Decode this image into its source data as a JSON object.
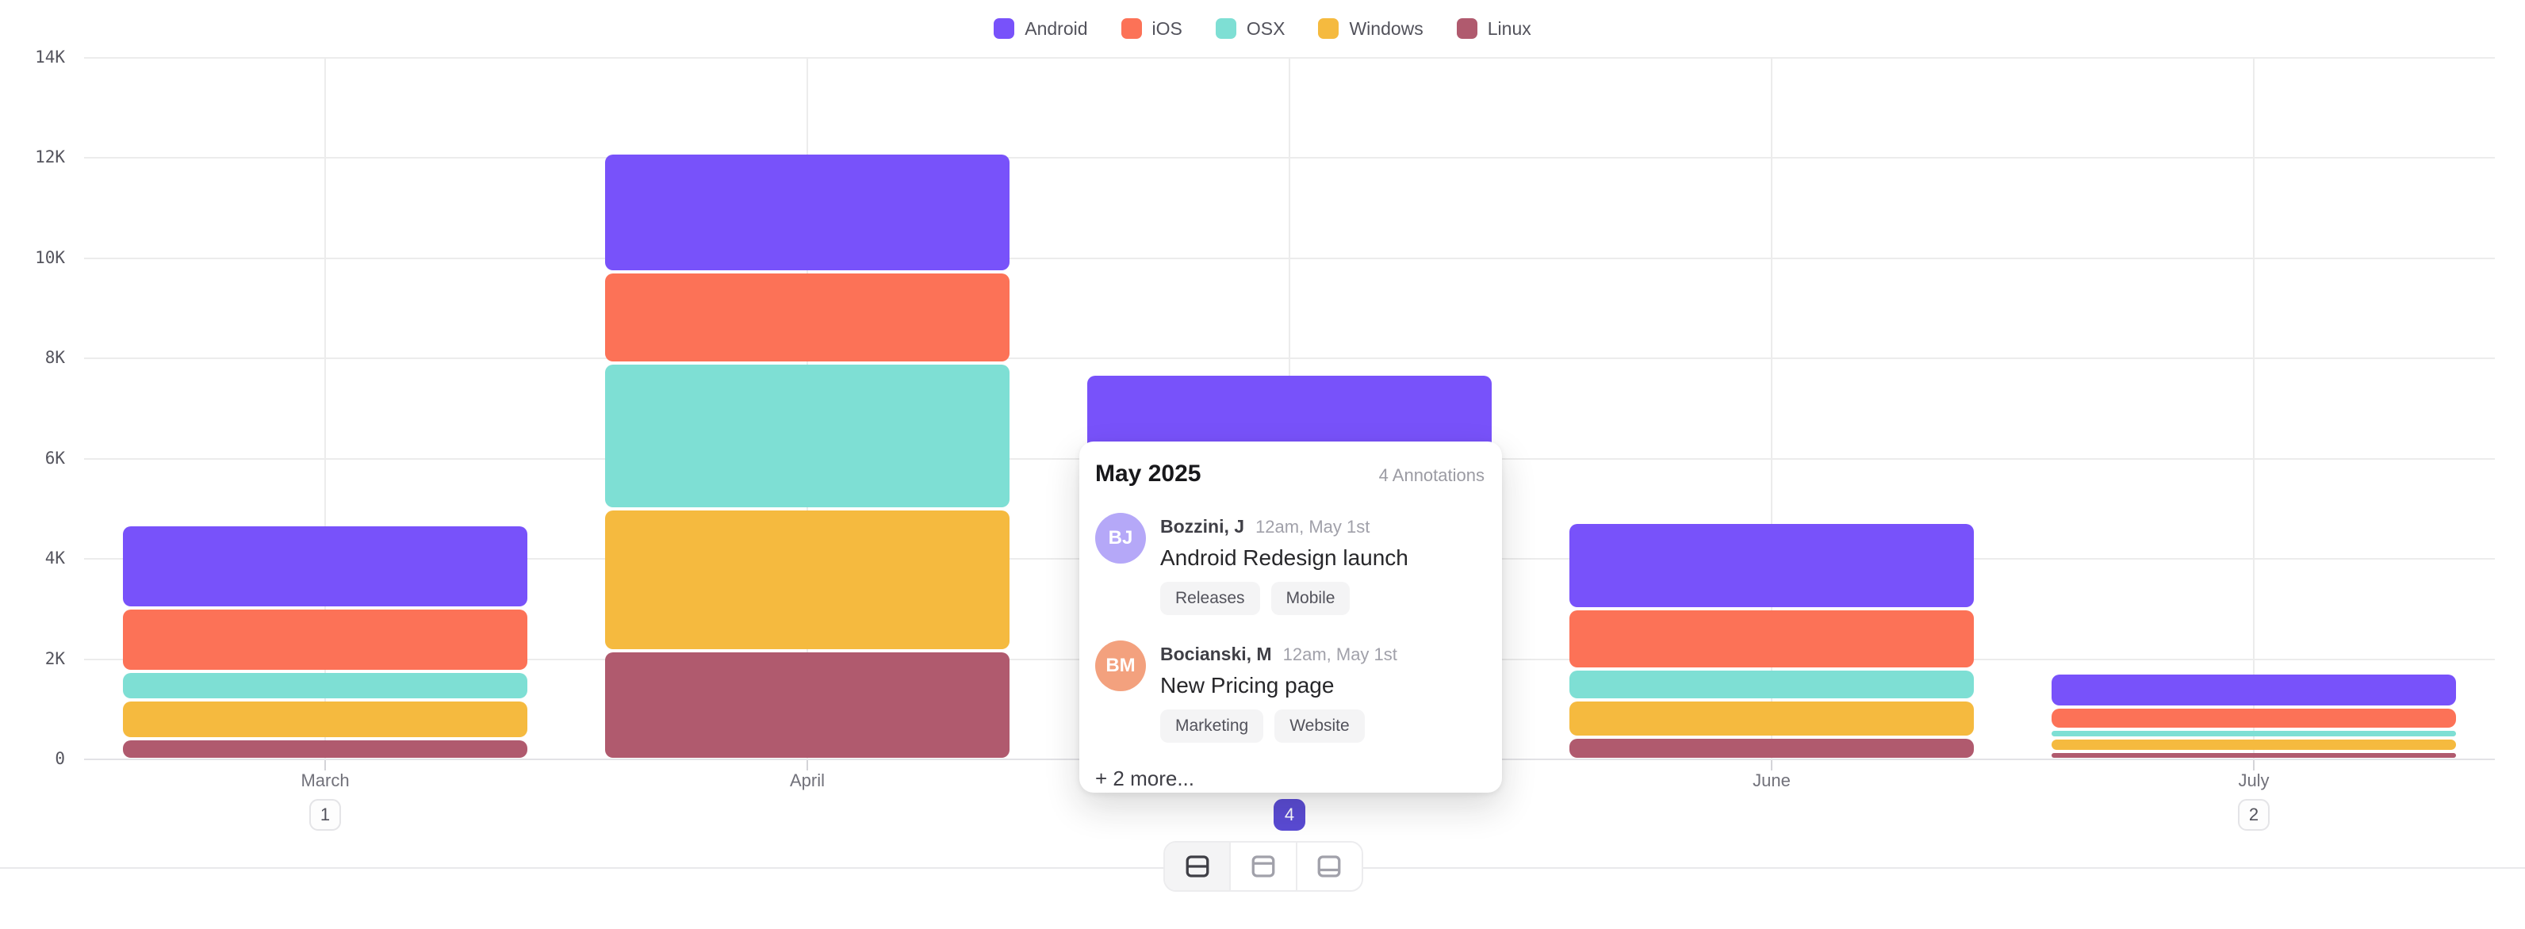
{
  "colors": {
    "android": "#7852FA",
    "ios": "#FC7257",
    "osx": "#7EDFD4",
    "windows": "#F5BA3F",
    "linux": "#B05A6E",
    "badge_active": "#5A4BD4",
    "grid": "#ECECEC"
  },
  "legend": {
    "items": [
      {
        "label": "Android",
        "color": "#7852FA"
      },
      {
        "label": "iOS",
        "color": "#FC7257"
      },
      {
        "label": "OSX",
        "color": "#7EDFD4"
      },
      {
        "label": "Windows",
        "color": "#F5BA3F"
      },
      {
        "label": "Linux",
        "color": "#B05A6E"
      }
    ]
  },
  "chart_data": {
    "type": "bar",
    "stacked": true,
    "categories": [
      "March",
      "April",
      "May",
      "June",
      "July"
    ],
    "series": [
      {
        "name": "Android",
        "color": "#7852FA",
        "values": [
          1650,
          2350,
          2400,
          1700,
          660
        ]
      },
      {
        "name": "iOS",
        "color": "#FC7257",
        "values": [
          1250,
          1800,
          1700,
          1200,
          440
        ]
      },
      {
        "name": "OSX",
        "color": "#7EDFD4",
        "values": [
          570,
          2870,
          1300,
          600,
          180
        ]
      },
      {
        "name": "Windows",
        "color": "#F5BA3F",
        "values": [
          760,
          2800,
          1300,
          740,
          260
        ]
      },
      {
        "name": "Linux",
        "color": "#B05A6E",
        "values": [
          410,
          2150,
          900,
          440,
          160
        ]
      }
    ],
    "title": "",
    "xlabel": "",
    "ylabel": "",
    "ylim": [
      0,
      14000
    ],
    "y_tick_labels": [
      "0",
      "2K",
      "4K",
      "6K",
      "8K",
      "10K",
      "12K",
      "14K"
    ],
    "grid": true,
    "legend_position": "top",
    "annotation_badges": [
      {
        "category_index": 0,
        "label": "1",
        "active": false
      },
      {
        "category_index": 2,
        "label": "4",
        "active": true
      },
      {
        "category_index": 4,
        "label": "2",
        "active": false
      }
    ]
  },
  "tooltip": {
    "title": "May 2025",
    "count_label": "4 Annotations",
    "entries": [
      {
        "initials": "BJ",
        "avatar_color": "#B5A8F8",
        "name": "Bozzini, J",
        "time": "12am, May 1st",
        "title": "Android Redesign launch",
        "tags": [
          "Releases",
          "Mobile"
        ]
      },
      {
        "initials": "BM",
        "avatar_color": "#F3A17E",
        "name": "Bocianski, M",
        "time": "12am, May 1st",
        "title": "New Pricing page",
        "tags": [
          "Marketing",
          "Website"
        ]
      }
    ],
    "more_label": "+ 2 more..."
  },
  "toolbar": {
    "buttons": [
      {
        "icon": "layout-split-rows-icon",
        "active": true
      },
      {
        "icon": "layout-header-top-icon",
        "active": false
      },
      {
        "icon": "layout-footer-bottom-icon",
        "active": false
      }
    ]
  }
}
